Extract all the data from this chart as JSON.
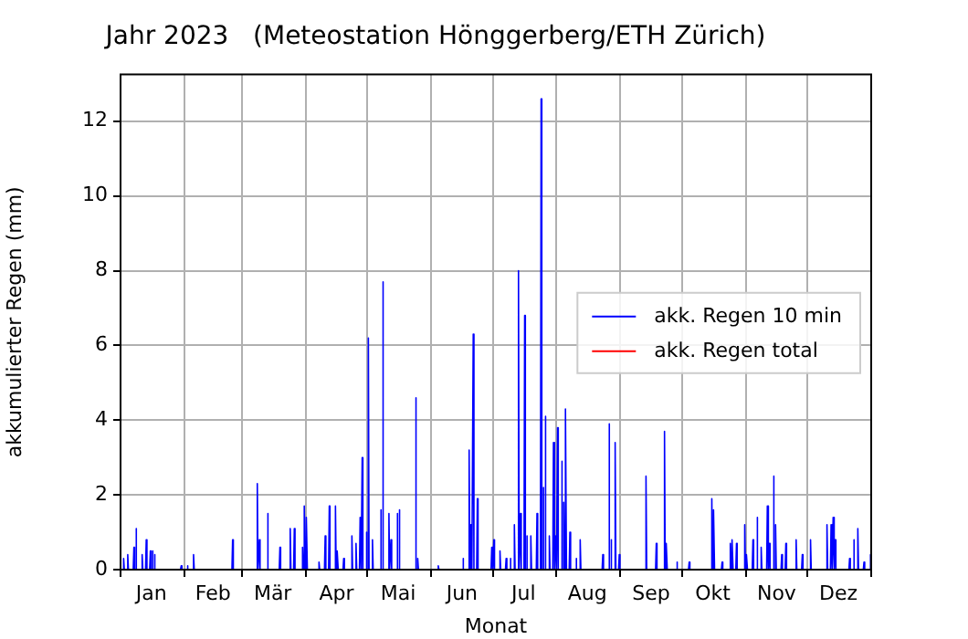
{
  "chart_data": {
    "type": "line",
    "title": "Jahr 2023   (Meteostation Hönggerberg/ETH Zürich)",
    "xlabel": "Monat",
    "ylabel": "akkumulierter Regen (mm)",
    "xlim": [
      "2023-01-01",
      "2024-01-01"
    ],
    "ylim": [
      0,
      13.25
    ],
    "yticks": [
      0,
      2,
      4,
      6,
      8,
      10,
      12
    ],
    "xticks": [
      {
        "value": "2023-01-01",
        "label": null
      },
      {
        "value": "2023-01-16",
        "label": "Jan"
      },
      {
        "value": "2023-02-01",
        "label": null
      },
      {
        "value": "2023-02-15",
        "label": "Feb"
      },
      {
        "value": "2023-03-01",
        "label": null
      },
      {
        "value": "2023-03-16",
        "label": "Mär"
      },
      {
        "value": "2023-04-01",
        "label": null
      },
      {
        "value": "2023-04-16",
        "label": "Apr"
      },
      {
        "value": "2023-05-01",
        "label": null
      },
      {
        "value": "2023-05-16",
        "label": "Mai"
      },
      {
        "value": "2023-06-01",
        "label": null
      },
      {
        "value": "2023-06-16",
        "label": "Jun"
      },
      {
        "value": "2023-07-01",
        "label": null
      },
      {
        "value": "2023-07-16",
        "label": "Jul"
      },
      {
        "value": "2023-08-01",
        "label": null
      },
      {
        "value": "2023-08-16",
        "label": "Aug"
      },
      {
        "value": "2023-09-01",
        "label": null
      },
      {
        "value": "2023-09-16",
        "label": "Sep"
      },
      {
        "value": "2023-10-01",
        "label": null
      },
      {
        "value": "2023-10-16",
        "label": "Okt"
      },
      {
        "value": "2023-11-01",
        "label": null
      },
      {
        "value": "2023-11-16",
        "label": "Nov"
      },
      {
        "value": "2023-12-01",
        "label": null
      },
      {
        "value": "2023-12-16",
        "label": "Dez"
      },
      {
        "value": "2024-01-01",
        "label": null
      }
    ],
    "grid": true,
    "legend": "right",
    "marker": "none",
    "line_style": "solid",
    "series": [
      {
        "name": "akk. Regen 10 min",
        "color": "#0000ff",
        "x": [
          "2023-01-02T04:00",
          "2023-01-02T12:00",
          "2023-01-02T20:00",
          "2023-01-04T04:00",
          "2023-01-04T12:00",
          "2023-01-04T20:00",
          "2023-01-07T04:00",
          "2023-01-07T12:00",
          "2023-01-07T20:00",
          "2023-01-08T04:00",
          "2023-01-08T12:00",
          "2023-01-08T20:00",
          "2023-01-11T04:00",
          "2023-01-11T12:00",
          "2023-01-11T20:00",
          "2023-01-13T04:00",
          "2023-01-13T12:00",
          "2023-01-13T20:00",
          "2023-01-15T04:00",
          "2023-01-15T12:00",
          "2023-01-15T20:00",
          "2023-01-16T04:00",
          "2023-01-16T12:00",
          "2023-01-16T20:00",
          "2023-01-17T04:00",
          "2023-01-17T12:00",
          "2023-01-17T20:00",
          "2023-01-30T04:00",
          "2023-01-30T12:00",
          "2023-01-30T20:00",
          "2023-02-02T04:00",
          "2023-02-02T12:00",
          "2023-02-02T20:00",
          "2023-02-05T04:00",
          "2023-02-05T12:00",
          "2023-02-05T20:00",
          "2023-02-24T04:00",
          "2023-02-24T12:00",
          "2023-02-24T20:00",
          "2023-03-08T04:00",
          "2023-03-08T12:00",
          "2023-03-08T20:00",
          "2023-03-09T04:00",
          "2023-03-09T12:00",
          "2023-03-09T20:00",
          "2023-03-13T04:00",
          "2023-03-13T12:00",
          "2023-03-13T20:00",
          "2023-03-19T04:00",
          "2023-03-19T12:00",
          "2023-03-19T20:00",
          "2023-03-24T04:00",
          "2023-03-24T12:00",
          "2023-03-24T20:00",
          "2023-03-26T04:00",
          "2023-03-26T12:00",
          "2023-03-26T20:00",
          "2023-03-30T04:00",
          "2023-03-30T12:00",
          "2023-03-30T20:00",
          "2023-03-31T04:00",
          "2023-03-31T12:00",
          "2023-03-31T20:00",
          "2023-04-01T04:00",
          "2023-04-01T12:00",
          "2023-04-01T20:00",
          "2023-04-07T04:00",
          "2023-04-07T12:00",
          "2023-04-07T20:00",
          "2023-04-10T04:00",
          "2023-04-10T12:00",
          "2023-04-10T20:00",
          "2023-04-12T04:00",
          "2023-04-12T12:00",
          "2023-04-12T20:00",
          "2023-04-15T04:00",
          "2023-04-15T12:00",
          "2023-04-15T20:00",
          "2023-04-16T04:00",
          "2023-04-16T12:00",
          "2023-04-16T20:00",
          "2023-04-19T04:00",
          "2023-04-19T12:00",
          "2023-04-19T20:00",
          "2023-04-23T04:00",
          "2023-04-23T12:00",
          "2023-04-23T20:00",
          "2023-04-25T04:00",
          "2023-04-25T12:00",
          "2023-04-25T20:00",
          "2023-04-27T04:00",
          "2023-04-27T12:00",
          "2023-04-27T20:00",
          "2023-04-28T04:00",
          "2023-04-28T12:00",
          "2023-04-28T20:00",
          "2023-04-30T04:00",
          "2023-04-30T12:00",
          "2023-04-30T20:00",
          "2023-05-01T04:00",
          "2023-05-01T12:00",
          "2023-05-01T20:00",
          "2023-05-03T04:00",
          "2023-05-03T12:00",
          "2023-05-03T20:00",
          "2023-05-07T04:00",
          "2023-05-07T12:00",
          "2023-05-07T20:00",
          "2023-05-08T04:00",
          "2023-05-08T12:00",
          "2023-05-08T20:00",
          "2023-05-11T04:00",
          "2023-05-11T12:00",
          "2023-05-11T20:00",
          "2023-05-12T04:00",
          "2023-05-12T12:00",
          "2023-05-12T20:00",
          "2023-05-15T04:00",
          "2023-05-15T12:00",
          "2023-05-15T20:00",
          "2023-05-16T04:00",
          "2023-05-16T12:00",
          "2023-05-16T20:00",
          "2023-05-24T04:00",
          "2023-05-24T12:00",
          "2023-05-24T20:00",
          "2023-05-25T04:00",
          "2023-05-25T12:00",
          "2023-05-25T20:00",
          "2023-06-04T04:00",
          "2023-06-04T12:00",
          "2023-06-04T20:00",
          "2023-06-16T04:00",
          "2023-06-16T12:00",
          "2023-06-16T20:00",
          "2023-06-19T04:00",
          "2023-06-19T12:00",
          "2023-06-19T20:00",
          "2023-06-20T04:00",
          "2023-06-20T12:00",
          "2023-06-20T20:00",
          "2023-06-21T04:00",
          "2023-06-21T12:00",
          "2023-06-21T20:00",
          "2023-06-23T04:00",
          "2023-06-23T12:00",
          "2023-06-23T20:00",
          "2023-06-30T04:00",
          "2023-06-30T12:00",
          "2023-06-30T20:00",
          "2023-07-01T04:00",
          "2023-07-01T12:00",
          "2023-07-01T20:00",
          "2023-07-04T04:00",
          "2023-07-04T12:00",
          "2023-07-04T20:00",
          "2023-07-07T04:00",
          "2023-07-07T12:00",
          "2023-07-07T20:00",
          "2023-07-09T04:00",
          "2023-07-09T12:00",
          "2023-07-09T20:00",
          "2023-07-11T04:00",
          "2023-07-11T12:00",
          "2023-07-11T20:00",
          "2023-07-13T04:00",
          "2023-07-13T12:00",
          "2023-07-13T20:00",
          "2023-07-14T04:00",
          "2023-07-14T12:00",
          "2023-07-14T20:00",
          "2023-07-16T04:00",
          "2023-07-16T12:00",
          "2023-07-16T20:00",
          "2023-07-17T04:00",
          "2023-07-17T12:00",
          "2023-07-17T20:00",
          "2023-07-19T04:00",
          "2023-07-19T12:00",
          "2023-07-19T20:00",
          "2023-07-22T04:00",
          "2023-07-22T12:00",
          "2023-07-22T20:00",
          "2023-07-24T04:00",
          "2023-07-24T12:00",
          "2023-07-24T20:00",
          "2023-07-25T04:00",
          "2023-07-25T12:00",
          "2023-07-25T20:00",
          "2023-07-26T04:00",
          "2023-07-26T12:00",
          "2023-07-26T20:00",
          "2023-07-28T04:00",
          "2023-07-28T12:00",
          "2023-07-28T20:00",
          "2023-07-30T04:00",
          "2023-07-30T12:00",
          "2023-07-30T20:00",
          "2023-07-31T04:00",
          "2023-07-31T12:00",
          "2023-07-31T20:00",
          "2023-08-01T04:00",
          "2023-08-01T12:00",
          "2023-08-01T20:00",
          "2023-08-03T04:00",
          "2023-08-03T12:00",
          "2023-08-03T20:00",
          "2023-08-04T04:00",
          "2023-08-04T12:00",
          "2023-08-04T20:00",
          "2023-08-05T04:00",
          "2023-08-05T12:00",
          "2023-08-05T20:00",
          "2023-08-07T04:00",
          "2023-08-07T12:00",
          "2023-08-07T20:00",
          "2023-08-10T04:00",
          "2023-08-10T12:00",
          "2023-08-10T20:00",
          "2023-08-12T04:00",
          "2023-08-12T12:00",
          "2023-08-12T20:00",
          "2023-08-23T04:00",
          "2023-08-23T12:00",
          "2023-08-23T20:00",
          "2023-08-26T04:00",
          "2023-08-26T12:00",
          "2023-08-26T20:00",
          "2023-08-27T04:00",
          "2023-08-27T12:00",
          "2023-08-27T20:00",
          "2023-08-29T04:00",
          "2023-08-29T12:00",
          "2023-08-29T20:00",
          "2023-08-31T04:00",
          "2023-08-31T12:00",
          "2023-08-31T20:00",
          "2023-09-13T04:00",
          "2023-09-13T12:00",
          "2023-09-13T20:00",
          "2023-09-18T04:00",
          "2023-09-18T12:00",
          "2023-09-18T20:00",
          "2023-09-22T04:00",
          "2023-09-22T12:00",
          "2023-09-22T20:00",
          "2023-09-23T04:00",
          "2023-09-23T12:00",
          "2023-09-23T20:00",
          "2023-09-28T04:00",
          "2023-09-28T12:00",
          "2023-09-28T20:00",
          "2023-10-04T04:00",
          "2023-10-04T12:00",
          "2023-10-04T20:00",
          "2023-10-15T04:00",
          "2023-10-15T12:00",
          "2023-10-15T20:00",
          "2023-10-16T04:00",
          "2023-10-16T12:00",
          "2023-10-16T20:00",
          "2023-10-20T04:00",
          "2023-10-20T12:00",
          "2023-10-20T20:00",
          "2023-10-24T04:00",
          "2023-10-24T12:00",
          "2023-10-24T20:00",
          "2023-10-25T04:00",
          "2023-10-25T12:00",
          "2023-10-25T20:00",
          "2023-10-27T04:00",
          "2023-10-27T12:00",
          "2023-10-27T20:00",
          "2023-10-31T04:00",
          "2023-10-31T12:00",
          "2023-10-31T20:00",
          "2023-11-01T04:00",
          "2023-11-01T12:00",
          "2023-11-01T20:00",
          "2023-11-04T04:00",
          "2023-11-04T12:00",
          "2023-11-04T20:00",
          "2023-11-06T04:00",
          "2023-11-06T12:00",
          "2023-11-06T20:00",
          "2023-11-08T04:00",
          "2023-11-08T12:00",
          "2023-11-08T20:00",
          "2023-11-11T04:00",
          "2023-11-11T12:00",
          "2023-11-11T20:00",
          "2023-11-12T04:00",
          "2023-11-12T12:00",
          "2023-11-12T20:00",
          "2023-11-14T04:00",
          "2023-11-14T12:00",
          "2023-11-14T20:00",
          "2023-11-15T04:00",
          "2023-11-15T12:00",
          "2023-11-15T20:00",
          "2023-11-18T04:00",
          "2023-11-18T12:00",
          "2023-11-18T20:00",
          "2023-11-20T04:00",
          "2023-11-20T12:00",
          "2023-11-20T20:00",
          "2023-11-25T04:00",
          "2023-11-25T12:00",
          "2023-11-25T20:00",
          "2023-11-28T04:00",
          "2023-11-28T12:00",
          "2023-11-28T20:00",
          "2023-12-02T04:00",
          "2023-12-02T12:00",
          "2023-12-02T20:00",
          "2023-12-10T04:00",
          "2023-12-10T12:00",
          "2023-12-10T20:00",
          "2023-12-12T04:00",
          "2023-12-12T12:00",
          "2023-12-12T20:00",
          "2023-12-13T04:00",
          "2023-12-13T12:00",
          "2023-12-13T20:00",
          "2023-12-14T04:00",
          "2023-12-14T12:00",
          "2023-12-14T20:00",
          "2023-12-21T04:00",
          "2023-12-21T12:00",
          "2023-12-21T20:00",
          "2023-12-23T04:00",
          "2023-12-23T12:00",
          "2023-12-23T20:00",
          "2023-12-25T04:00",
          "2023-12-25T12:00",
          "2023-12-25T20:00",
          "2023-12-28T04:00",
          "2023-12-28T12:00",
          "2023-12-28T20:00",
          "2023-12-31T04:00",
          "2023-12-31T12:00",
          "2023-12-31T20:00"
        ],
        "values": [
          0,
          0.3,
          0,
          0,
          0.4,
          0,
          0,
          0.6,
          0,
          0,
          1.1,
          0,
          0,
          0.4,
          0,
          0,
          0.8,
          0,
          0,
          0.5,
          0,
          0,
          0.5,
          0,
          0,
          0.4,
          0,
          0,
          0.1,
          0,
          0,
          0.1,
          0,
          0,
          0.4,
          0,
          0,
          0.8,
          0,
          0,
          2.3,
          0,
          0,
          0.8,
          0,
          0,
          1.5,
          0,
          0,
          0.6,
          0,
          0,
          1.1,
          0,
          0,
          1.1,
          0,
          0,
          0.6,
          0,
          0,
          1.7,
          0,
          0,
          1.4,
          0,
          0,
          0.2,
          0,
          0,
          0.9,
          0,
          0,
          1.7,
          0,
          0,
          1.7,
          0,
          0,
          0.5,
          0,
          0,
          0.3,
          0,
          0,
          0.9,
          0,
          0,
          0.7,
          0,
          0,
          1.4,
          0,
          0,
          3.0,
          0,
          0,
          1.0,
          0,
          0,
          6.2,
          0,
          0,
          0.8,
          0,
          0,
          1.6,
          0,
          0,
          7.7,
          0,
          0,
          1.5,
          0,
          0,
          0.8,
          0,
          0,
          1.5,
          0,
          0,
          1.6,
          0,
          0,
          4.6,
          0,
          0,
          0.3,
          0,
          0,
          0.1,
          0,
          0,
          0.3,
          0,
          0,
          3.2,
          0,
          0,
          1.2,
          0,
          0,
          6.3,
          0,
          0,
          1.9,
          0,
          0,
          0.6,
          0,
          0,
          0.8,
          0,
          0,
          0.5,
          0,
          0,
          0.3,
          0,
          0,
          0.3,
          0,
          0,
          1.2,
          0,
          0,
          8.0,
          0,
          0,
          1.5,
          0,
          0,
          6.8,
          0,
          0,
          0.9,
          0,
          0,
          0.9,
          0,
          0,
          1.5,
          0,
          0,
          12.6,
          0,
          0,
          2.2,
          0,
          0,
          4.1,
          0,
          0,
          0.9,
          0,
          0,
          3.4,
          0,
          0,
          0.9,
          0,
          0,
          3.8,
          0,
          0,
          2.9,
          0,
          0,
          1.8,
          0,
          0,
          4.3,
          0,
          0,
          1.0,
          0,
          0,
          0.3,
          0,
          0,
          0.8,
          0,
          0,
          0.4,
          0,
          0,
          3.9,
          0,
          0,
          0.8,
          0,
          0,
          3.4,
          0,
          0,
          0.4,
          0,
          0,
          2.5,
          0,
          0,
          0.7,
          0,
          0,
          3.7,
          0,
          0,
          0.7,
          0,
          0,
          0.2,
          0,
          0,
          0.2,
          0,
          0,
          1.9,
          0,
          0,
          1.6,
          0,
          0,
          0.2,
          0,
          0,
          0.7,
          0,
          0,
          0.8,
          0,
          0,
          0.7,
          0,
          0,
          1.2,
          0,
          0,
          0.4,
          0,
          0,
          0.8,
          0,
          0,
          1.4,
          0,
          0,
          0.6,
          0,
          0,
          1.7,
          0,
          0,
          0.7,
          0,
          0,
          2.5,
          0,
          0,
          1.2,
          0,
          0,
          0.4,
          0,
          0,
          0.7,
          0,
          0,
          0.8,
          0,
          0,
          0.4,
          0,
          0,
          0.8,
          0,
          0,
          1.2,
          0,
          0,
          1.2,
          0,
          0,
          1.4,
          0,
          0,
          0.8,
          0,
          0,
          0.3,
          0,
          0,
          0.8,
          0,
          0,
          1.1,
          0,
          0,
          0.2,
          0,
          0,
          0.4,
          0
        ]
      },
      {
        "name": "akk. Regen total",
        "color": "#ff0000"
      }
    ]
  }
}
